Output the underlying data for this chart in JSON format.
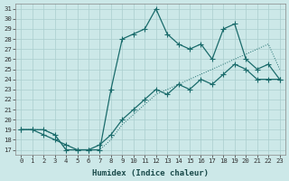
{
  "xlabel": "Humidex (Indice chaleur)",
  "background_color": "#cce8e8",
  "grid_color": "#aacece",
  "line_color": "#1a6b6b",
  "xlim": [
    -0.5,
    23.5
  ],
  "ylim": [
    16.5,
    31.5
  ],
  "xticks": [
    0,
    1,
    2,
    3,
    4,
    5,
    6,
    7,
    8,
    9,
    10,
    11,
    12,
    13,
    14,
    15,
    16,
    17,
    18,
    19,
    20,
    21,
    22,
    23
  ],
  "yticks": [
    17,
    18,
    19,
    20,
    21,
    22,
    23,
    24,
    25,
    26,
    27,
    28,
    29,
    30,
    31
  ],
  "line1_x": [
    0,
    1,
    2,
    3,
    4,
    5,
    6,
    7,
    8,
    9,
    10,
    11,
    12,
    13,
    14,
    15,
    16,
    17,
    18,
    19,
    20,
    21,
    22,
    23
  ],
  "line1_y": [
    19,
    19,
    19,
    18.5,
    17,
    17,
    17,
    17,
    23,
    28,
    28.5,
    29,
    31,
    28.5,
    27.5,
    27,
    27.5,
    26,
    29,
    29.5,
    26,
    25,
    25.5,
    24
  ],
  "line2_x": [
    0,
    1,
    2,
    3,
    4,
    5,
    6,
    7,
    8,
    9,
    10,
    11,
    12,
    13,
    14,
    15,
    16,
    17,
    18,
    19,
    20,
    21,
    22,
    23
  ],
  "line2_y": [
    19,
    19,
    19,
    18.5,
    17,
    17,
    17,
    17,
    18,
    19.5,
    20.5,
    21.5,
    22.5,
    23,
    23.5,
    24,
    24.5,
    25,
    25.5,
    26,
    26.5,
    27,
    27.5,
    25
  ],
  "line3_x": [
    0,
    1,
    2,
    3,
    4,
    5,
    6,
    7,
    8,
    9,
    10,
    11,
    12,
    13,
    14,
    15,
    16,
    17,
    18,
    19,
    20,
    21,
    22,
    23
  ],
  "line3_y": [
    19,
    19,
    18.5,
    18,
    17.5,
    17,
    17,
    17.5,
    18.5,
    20,
    21,
    22,
    23,
    22.5,
    23.5,
    23,
    24,
    23.5,
    24.5,
    25.5,
    25,
    24,
    24,
    24
  ]
}
